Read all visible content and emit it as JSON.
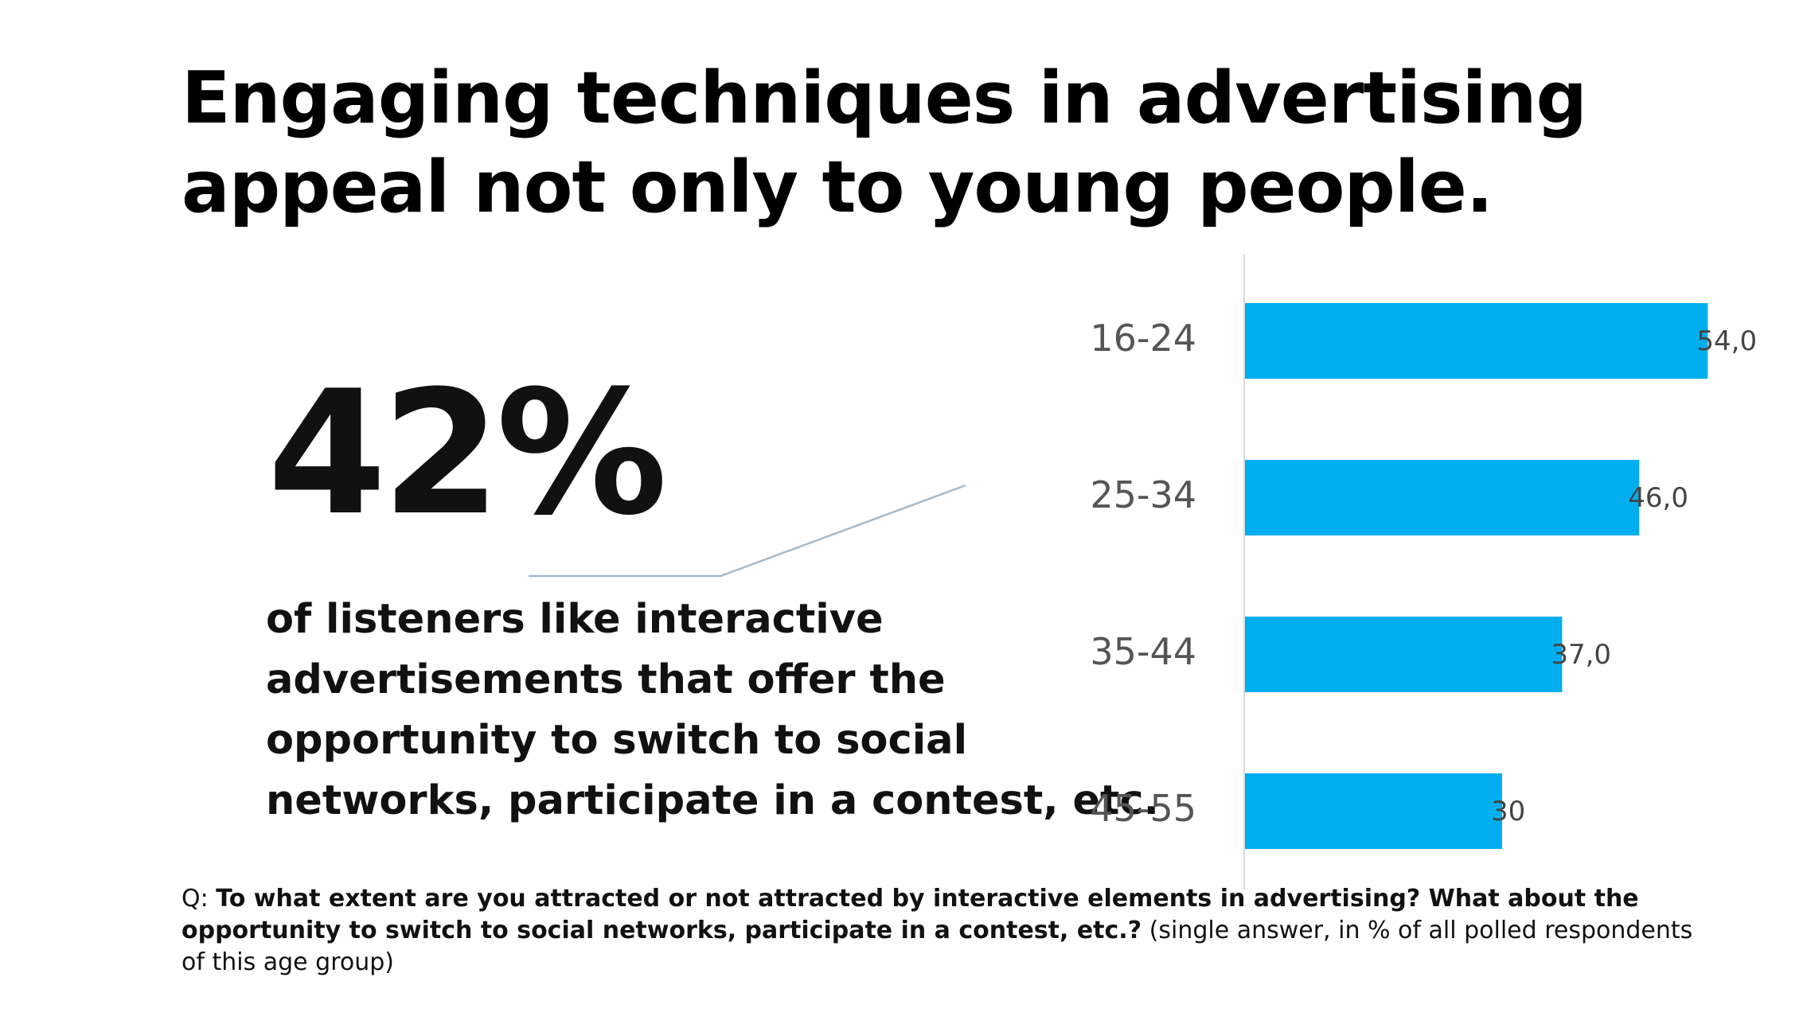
{
  "title": {
    "line1": "Engaging techniques in advertising",
    "line2": "appeal not only to young people."
  },
  "stat": {
    "value": "42%",
    "description_lines": [
      "of listeners like interactive",
      "advertisements that offer the",
      "opportunity to switch to social",
      "networks, participate in a contest, etc."
    ]
  },
  "footnote": {
    "prefix": "Q: ",
    "question": "To what extent are you   attracted or not attracted by interactive elements in advertising? What about   the opportunity to switch to social networks, participate in a contest, etc.?",
    "note": "   (single answer, in % of all polled respondents of this age group)"
  },
  "chart_data": {
    "type": "bar",
    "orientation": "horizontal",
    "categories": [
      "16-24",
      "25-34",
      "35-44",
      "45-55"
    ],
    "values": [
      54.0,
      46.0,
      37.0,
      30
    ],
    "value_labels": [
      "54,0",
      "46,0",
      "37,0",
      "30"
    ],
    "bar_color": "#00AEEF",
    "xlim": [
      0,
      60
    ],
    "grid": false,
    "legend": "none"
  },
  "colors": {
    "connector_line": "#A9B8C6",
    "axis_line": "#D9D9D9"
  }
}
